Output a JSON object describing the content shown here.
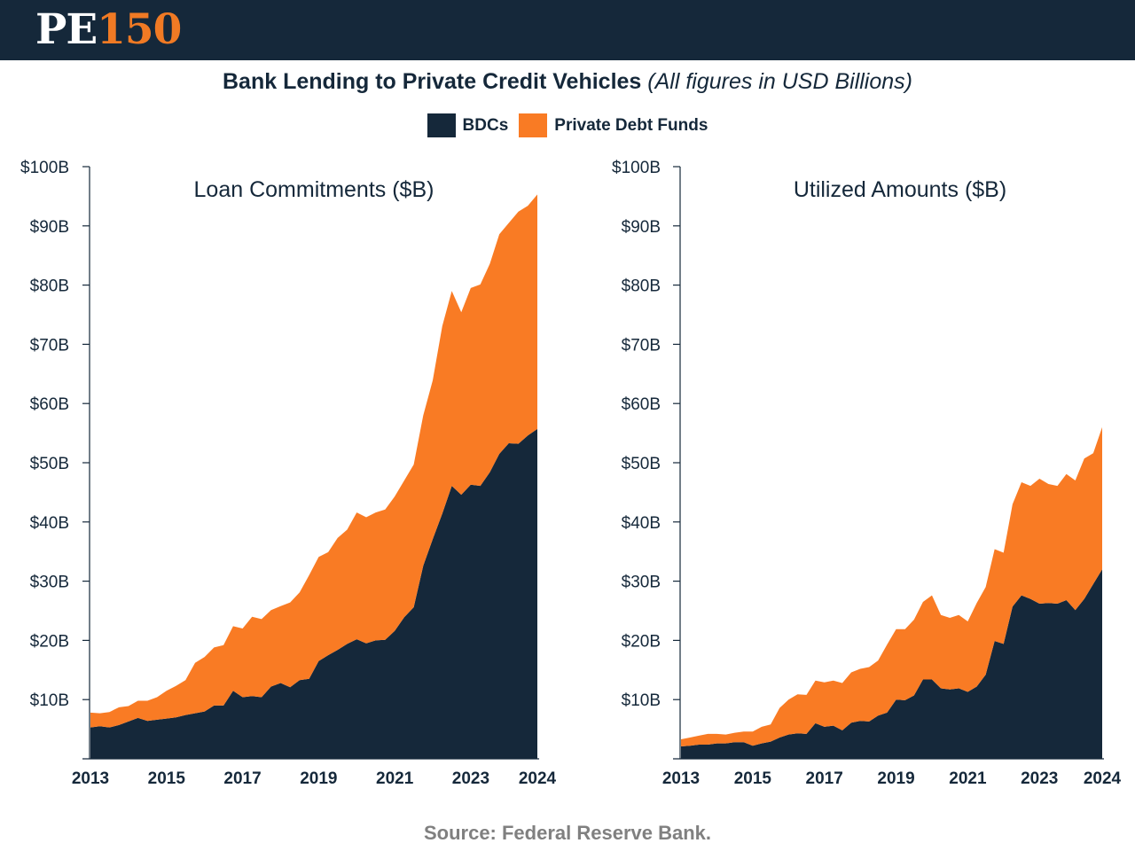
{
  "header": {
    "logo_text_1": "PE",
    "logo_text_2": "150"
  },
  "title": {
    "main": "Bank Lending to Private Credit Vehicles",
    "sub": "(All figures in USD Billions)"
  },
  "legend": [
    {
      "label": "BDCs",
      "color": "#15283a"
    },
    {
      "label": "Private Debt Funds",
      "color": "#f97b24"
    }
  ],
  "source": "Source: Federal Reserve Bank.",
  "chart_data": [
    {
      "type": "area",
      "stacked": true,
      "title": "Loan Commitments ($B)",
      "ylim": [
        0,
        100
      ],
      "y_ticks": [
        {
          "value": 10,
          "label": "$10B"
        },
        {
          "value": 20,
          "label": "$20B"
        },
        {
          "value": 30,
          "label": "$30B"
        },
        {
          "value": 40,
          "label": "$40B"
        },
        {
          "value": 50,
          "label": "$50B"
        },
        {
          "value": 60,
          "label": "$60B"
        },
        {
          "value": 70,
          "label": "$70B"
        },
        {
          "value": 80,
          "label": "$80B"
        },
        {
          "value": 90,
          "label": "$90B"
        },
        {
          "value": 100,
          "label": "$100B"
        }
      ],
      "x_ticks": [
        {
          "value": 2013,
          "label": "2013"
        },
        {
          "value": 2015,
          "label": "2015"
        },
        {
          "value": 2017,
          "label": "2017"
        },
        {
          "value": 2019,
          "label": "2019"
        },
        {
          "value": 2021,
          "label": "2021"
        },
        {
          "value": 2023,
          "label": "2023"
        },
        {
          "value": 2024.75,
          "label": "2024"
        }
      ],
      "xlim": [
        2013,
        2024.75
      ],
      "x_start": 2013,
      "step": 0.25,
      "series": [
        {
          "name": "BDCs",
          "values": [
            5.3,
            5.5,
            5.3,
            5.7,
            6.3,
            6.9,
            6.4,
            6.6,
            6.8,
            7.0,
            7.4,
            7.7,
            8.0,
            9.0,
            9.0,
            11.5,
            10.4,
            10.6,
            10.4,
            12.2,
            12.8,
            12.1,
            13.3,
            13.5,
            16.5,
            17.5,
            18.4,
            19.4,
            20.2,
            19.5,
            20.0,
            20.1,
            21.6,
            23.9,
            25.6,
            32.6,
            37.1,
            41.4,
            46.1,
            44.6,
            46.3,
            46.1,
            48.4,
            51.5,
            53.3,
            53.2,
            54.6,
            55.7
          ]
        },
        {
          "name": "Private Debt Funds",
          "values": [
            2.5,
            2.2,
            2.6,
            3.0,
            2.6,
            2.9,
            3.4,
            3.8,
            4.7,
            5.3,
            5.9,
            8.5,
            9.2,
            9.8,
            10.2,
            10.9,
            11.6,
            13.4,
            13.2,
            12.9,
            13.0,
            14.3,
            14.8,
            17.5,
            17.6,
            17.4,
            18.9,
            19.3,
            21.4,
            21.3,
            21.6,
            22.0,
            22.7,
            23.1,
            24.1,
            25.4,
            26.8,
            31.7,
            32.9,
            30.8,
            33.2,
            34.0,
            35.2,
            37.1,
            37.2,
            39.2,
            38.8,
            39.6
          ]
        }
      ]
    },
    {
      "type": "area",
      "stacked": true,
      "title": "Utilized Amounts ($B)",
      "ylim": [
        0,
        100
      ],
      "y_ticks": [
        {
          "value": 10,
          "label": "$10B"
        },
        {
          "value": 20,
          "label": "$20B"
        },
        {
          "value": 30,
          "label": "$30B"
        },
        {
          "value": 40,
          "label": "$40B"
        },
        {
          "value": 50,
          "label": "$50B"
        },
        {
          "value": 60,
          "label": "$60B"
        },
        {
          "value": 70,
          "label": "$70B"
        },
        {
          "value": 80,
          "label": "$80B"
        },
        {
          "value": 90,
          "label": "$90B"
        },
        {
          "value": 100,
          "label": "$100B"
        }
      ],
      "x_ticks": [
        {
          "value": 2013,
          "label": "2013"
        },
        {
          "value": 2015,
          "label": "2015"
        },
        {
          "value": 2017,
          "label": "2017"
        },
        {
          "value": 2019,
          "label": "2019"
        },
        {
          "value": 2021,
          "label": "2021"
        },
        {
          "value": 2023,
          "label": "2023"
        },
        {
          "value": 2024.75,
          "label": "2024"
        }
      ],
      "xlim": [
        2013,
        2024.75
      ],
      "x_start": 2013,
      "step": 0.25,
      "series": [
        {
          "name": "BDCs",
          "values": [
            2.1,
            2.2,
            2.4,
            2.4,
            2.6,
            2.6,
            2.8,
            2.8,
            2.2,
            2.6,
            2.9,
            3.6,
            4.1,
            4.3,
            4.2,
            6.0,
            5.4,
            5.6,
            4.8,
            6.1,
            6.4,
            6.3,
            7.3,
            7.8,
            10.0,
            9.9,
            10.7,
            13.4,
            13.4,
            11.9,
            11.7,
            11.9,
            11.3,
            12.2,
            14.2,
            19.9,
            19.4,
            25.7,
            27.6,
            27.0,
            26.2,
            26.3,
            26.2,
            26.8,
            25.1,
            27.0,
            29.5,
            32.0
          ]
        },
        {
          "name": "Private Debt Funds",
          "values": [
            1.2,
            1.4,
            1.5,
            1.8,
            1.6,
            1.5,
            1.6,
            1.8,
            2.4,
            2.8,
            2.9,
            5.0,
            5.9,
            6.6,
            6.6,
            7.2,
            7.5,
            7.6,
            8.0,
            8.5,
            8.8,
            9.2,
            9.3,
            11.5,
            11.9,
            12.0,
            12.8,
            13.1,
            14.2,
            12.4,
            12.1,
            12.4,
            11.9,
            14.1,
            14.8,
            15.5,
            15.4,
            17.3,
            19.1,
            19.1,
            21.1,
            20.1,
            19.9,
            21.3,
            21.9,
            23.7,
            22.1,
            24.0
          ]
        }
      ]
    }
  ]
}
